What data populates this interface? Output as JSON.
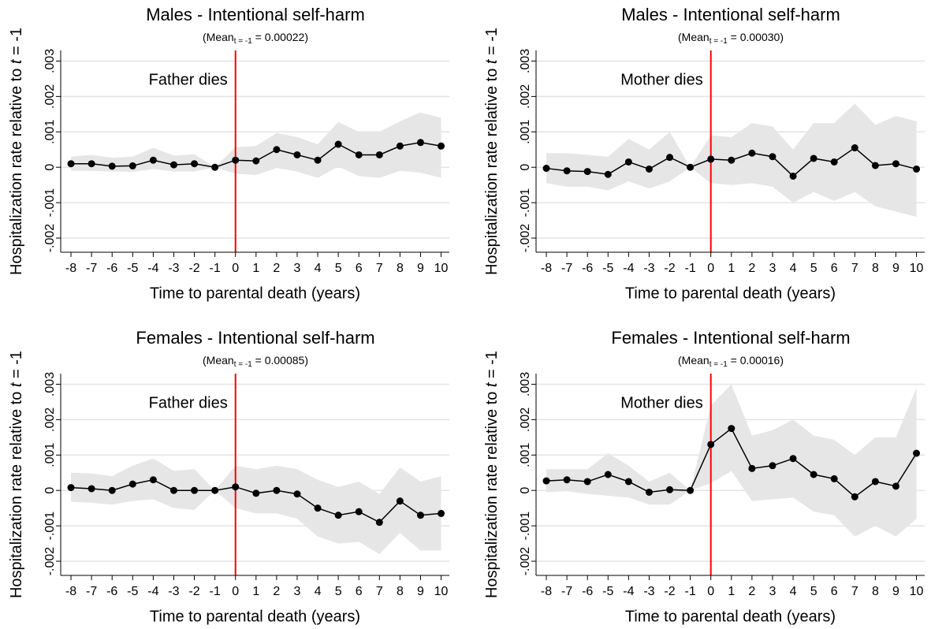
{
  "chart_data": [
    {
      "type": "line",
      "title": "Males - Intentional self-harm",
      "subtitle": [
        "(Mean",
        "t = -1",
        " = 0.00022)"
      ],
      "ylabel": [
        "Hospitalization rate relative to ",
        "t",
        " = -1"
      ],
      "xlabel": "Time to parental death (years)",
      "annotation": "Father dies",
      "vline": 0,
      "vline_color": "#ff0000",
      "color": "#000000",
      "band_color": "#e6e6e6",
      "grid": true,
      "x": [
        -8,
        -7,
        -6,
        -5,
        -4,
        -3,
        -2,
        -1,
        0,
        1,
        2,
        3,
        4,
        5,
        6,
        7,
        8,
        9,
        10
      ],
      "values": [
        0.0001,
        0.0001,
        3e-05,
        4e-05,
        0.0002,
        7e-05,
        0.0001,
        0,
        0.0002,
        0.00018,
        0.0005,
        0.00035,
        0.0002,
        0.00065,
        0.00035,
        0.00035,
        0.0006,
        0.0007,
        0.0006
      ],
      "ci_upper": [
        0.0003,
        0.00035,
        0.00027,
        0.0003,
        0.00055,
        0.00033,
        0.00037,
        0,
        0.00057,
        0.0006,
        0.00097,
        0.00085,
        0.00065,
        0.00128,
        0.001,
        0.001,
        0.0013,
        0.00155,
        0.0014
      ],
      "ci_lower": [
        -0.0001,
        -0.0001,
        -0.00012,
        -0.00013,
        -5e-05,
        -0.00012,
        -0.00012,
        0,
        -0.00018,
        -0.00022,
        -2e-05,
        -0.00012,
        -0.0003,
        2e-05,
        -0.00025,
        -0.0003,
        -0.0001,
        -0.00015,
        -0.0003
      ],
      "xlim": [
        -8.5,
        10.4
      ],
      "xticks": [
        -8,
        -7,
        -6,
        -5,
        -4,
        -3,
        -2,
        -1,
        0,
        1,
        2,
        3,
        4,
        5,
        6,
        7,
        8,
        9,
        10
      ],
      "ylim": [
        -0.0024,
        0.0033
      ],
      "yticks": [
        {
          "value": -0.002,
          "label": "-.002"
        },
        {
          "value": -0.001,
          "label": "-.001"
        },
        0,
        {
          "value": 0.001,
          "label": ".001"
        },
        {
          "value": 0.002,
          "label": ".002"
        },
        {
          "value": 0.003,
          "label": ".003"
        }
      ]
    },
    {
      "type": "line",
      "title": "Males - Intentional self-harm",
      "subtitle": [
        "(Mean",
        "t = -1",
        " = 0.00030)"
      ],
      "ylabel": [
        "Hospitalization rate relative to ",
        "t",
        " = -1"
      ],
      "xlabel": "Time to parental death (years)",
      "annotation": "Mother dies",
      "vline": 0,
      "vline_color": "#ff0000",
      "color": "#000000",
      "band_color": "#e6e6e6",
      "grid": true,
      "x": [
        -8,
        -7,
        -6,
        -5,
        -4,
        -3,
        -2,
        -1,
        0,
        1,
        2,
        3,
        4,
        5,
        6,
        7,
        8,
        9,
        10
      ],
      "values": [
        -3e-05,
        -0.0001,
        -0.00012,
        -0.0002,
        0.00015,
        -5e-05,
        0.00028,
        0,
        0.00023,
        0.0002,
        0.0004,
        0.0003,
        -0.00025,
        0.00025,
        0.00015,
        0.00055,
        5e-05,
        0.0001,
        -5e-05
      ],
      "ci_upper": [
        0.0004,
        0.0004,
        0.00035,
        0.0003,
        0.0008,
        0.0005,
        0.001,
        0,
        0.0009,
        0.00085,
        0.00125,
        0.00115,
        0.0005,
        0.00125,
        0.00125,
        0.0018,
        0.0012,
        0.00145,
        0.0013
      ],
      "ci_lower": [
        -0.00045,
        -0.00055,
        -0.00055,
        -0.00065,
        -0.0004,
        -0.0006,
        -0.0004,
        0,
        -0.00045,
        -0.0005,
        -0.00045,
        -0.00055,
        -0.001,
        -0.0007,
        -0.00095,
        -0.0007,
        -0.0011,
        -0.00125,
        -0.0014
      ],
      "xlim": [
        -8.5,
        10.4
      ],
      "xticks": [
        -8,
        -7,
        -6,
        -5,
        -4,
        -3,
        -2,
        -1,
        0,
        1,
        2,
        3,
        4,
        5,
        6,
        7,
        8,
        9,
        10
      ],
      "ylim": [
        -0.0024,
        0.0033
      ],
      "yticks": [
        {
          "value": -0.002,
          "label": "-.002"
        },
        {
          "value": -0.001,
          "label": "-.001"
        },
        0,
        {
          "value": 0.001,
          "label": ".001"
        },
        {
          "value": 0.002,
          "label": ".002"
        },
        {
          "value": 0.003,
          "label": ".003"
        }
      ]
    },
    {
      "type": "line",
      "title": "Females - Intentional self-harm",
      "subtitle": [
        "(Mean",
        "t = -1",
        " = 0.00085)"
      ],
      "ylabel": [
        "Hospitalization rate relative to ",
        "t",
        " = -1"
      ],
      "xlabel": "Time to parental death (years)",
      "annotation": "Father dies",
      "vline": 0,
      "vline_color": "#ff0000",
      "color": "#000000",
      "band_color": "#e6e6e6",
      "grid": true,
      "x": [
        -8,
        -7,
        -6,
        -5,
        -4,
        -3,
        -2,
        -1,
        0,
        1,
        2,
        3,
        4,
        5,
        6,
        7,
        8,
        9,
        10
      ],
      "values": [
        8e-05,
        5e-05,
        0,
        0.00018,
        0.0003,
        0,
        0,
        0,
        0.0001,
        -8e-05,
        0,
        -0.0001,
        -0.0005,
        -0.0007,
        -0.0006,
        -0.0009,
        -0.0003,
        -0.0007,
        -0.00065
      ],
      "ci_upper": [
        0.0005,
        0.00048,
        0.0004,
        0.0007,
        0.0009,
        0.00055,
        0.0006,
        0,
        0.0007,
        0.0006,
        0.0007,
        0.0006,
        0.0003,
        0.0001,
        0.00025,
        -0.0001,
        0.00065,
        0.00025,
        0.0004
      ],
      "ci_lower": [
        -0.00032,
        -0.00035,
        -0.0004,
        -0.0003,
        -0.00025,
        -0.0005,
        -0.00055,
        0,
        -0.0005,
        -0.00065,
        -0.00065,
        -0.0008,
        -0.0013,
        -0.0015,
        -0.00145,
        -0.0018,
        -0.0012,
        -0.0017,
        -0.0017
      ],
      "xlim": [
        -8.5,
        10.4
      ],
      "xticks": [
        -8,
        -7,
        -6,
        -5,
        -4,
        -3,
        -2,
        -1,
        0,
        1,
        2,
        3,
        4,
        5,
        6,
        7,
        8,
        9,
        10
      ],
      "ylim": [
        -0.0024,
        0.0033
      ],
      "yticks": [
        {
          "value": -0.002,
          "label": "-.002"
        },
        {
          "value": -0.001,
          "label": "-.001"
        },
        0,
        {
          "value": 0.001,
          "label": ".001"
        },
        {
          "value": 0.002,
          "label": ".002"
        },
        {
          "value": 0.003,
          "label": ".003"
        }
      ]
    },
    {
      "type": "line",
      "title": "Females - Intentional self-harm",
      "subtitle": [
        "(Mean",
        "t = -1",
        " = 0.00016)"
      ],
      "ylabel": [
        "Hospitalization rate relative to ",
        "t",
        " = -1"
      ],
      "xlabel": "Time to parental death (years)",
      "annotation": "Mother dies",
      "vline": 0,
      "vline_color": "#ff0000",
      "color": "#000000",
      "band_color": "#e6e6e6",
      "grid": true,
      "x": [
        -8,
        -7,
        -6,
        -5,
        -4,
        -3,
        -2,
        -1,
        0,
        1,
        2,
        3,
        4,
        5,
        6,
        7,
        8,
        9,
        10
      ],
      "values": [
        0.00027,
        0.0003,
        0.00025,
        0.00045,
        0.00025,
        -5e-05,
        2e-05,
        0,
        0.0013,
        0.00175,
        0.00062,
        0.0007,
        0.0009,
        0.00045,
        0.00033,
        -0.00018,
        0.00025,
        0.00012,
        0.00105
      ],
      "ci_upper": [
        0.0006,
        0.0006,
        0.0006,
        0.00105,
        0.0007,
        0.00025,
        0.0005,
        0,
        0.0024,
        0.003,
        0.00155,
        0.0017,
        0.002,
        0.00155,
        0.00143,
        0.001,
        0.0015,
        0.0015,
        0.0029
      ],
      "ci_lower": [
        -5e-05,
        -2e-05,
        -0.0001,
        -0.00015,
        -0.0002,
        -0.0004,
        -0.0004,
        0,
        0.0002,
        0.00055,
        -0.0003,
        -0.00025,
        -0.0002,
        -0.0006,
        -0.0007,
        -0.0013,
        -0.001,
        -0.0013,
        -0.0008
      ],
      "xlim": [
        -8.5,
        10.4
      ],
      "xticks": [
        -8,
        -7,
        -6,
        -5,
        -4,
        -3,
        -2,
        -1,
        0,
        1,
        2,
        3,
        4,
        5,
        6,
        7,
        8,
        9,
        10
      ],
      "ylim": [
        -0.0024,
        0.0033
      ],
      "yticks": [
        {
          "value": -0.002,
          "label": "-.002"
        },
        {
          "value": -0.001,
          "label": "-.001"
        },
        0,
        {
          "value": 0.001,
          "label": ".001"
        },
        {
          "value": 0.002,
          "label": ".002"
        },
        {
          "value": 0.003,
          "label": ".003"
        }
      ]
    }
  ]
}
